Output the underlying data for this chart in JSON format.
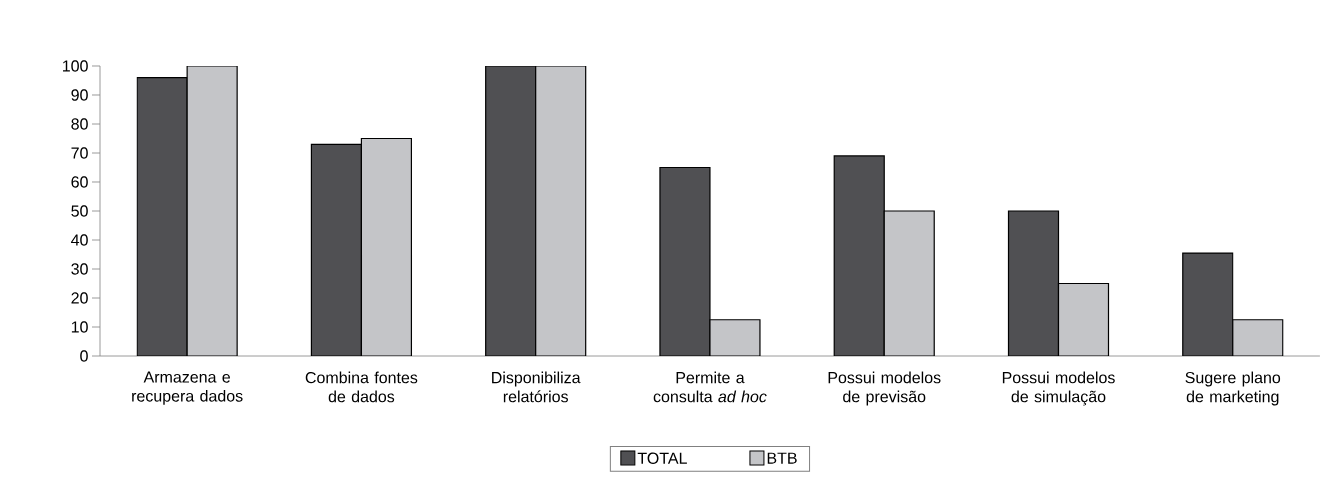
{
  "chart_data": {
    "type": "bar",
    "categories": [
      "Armazena e recupera dados",
      "Combina fontes de dados",
      "Disponibiliza relatórios",
      "Permite a consulta *ad hoc*",
      "Possui modelos de previsão",
      "Possui modelos de simulação",
      "Sugere plano de marketing"
    ],
    "series": [
      {
        "name": "TOTAL",
        "color": "#505053",
        "values": [
          96,
          73,
          100,
          65,
          69,
          50,
          35.5
        ]
      },
      {
        "name": "BTB",
        "color": "#c4c5c8",
        "values": [
          100,
          75,
          100,
          12.5,
          50,
          25,
          12.5
        ]
      }
    ],
    "ylim": [
      0,
      100
    ],
    "yticks": [
      0,
      10,
      20,
      30,
      40,
      50,
      60,
      70,
      80,
      90,
      100
    ],
    "grid": false,
    "legend": "bottom"
  }
}
